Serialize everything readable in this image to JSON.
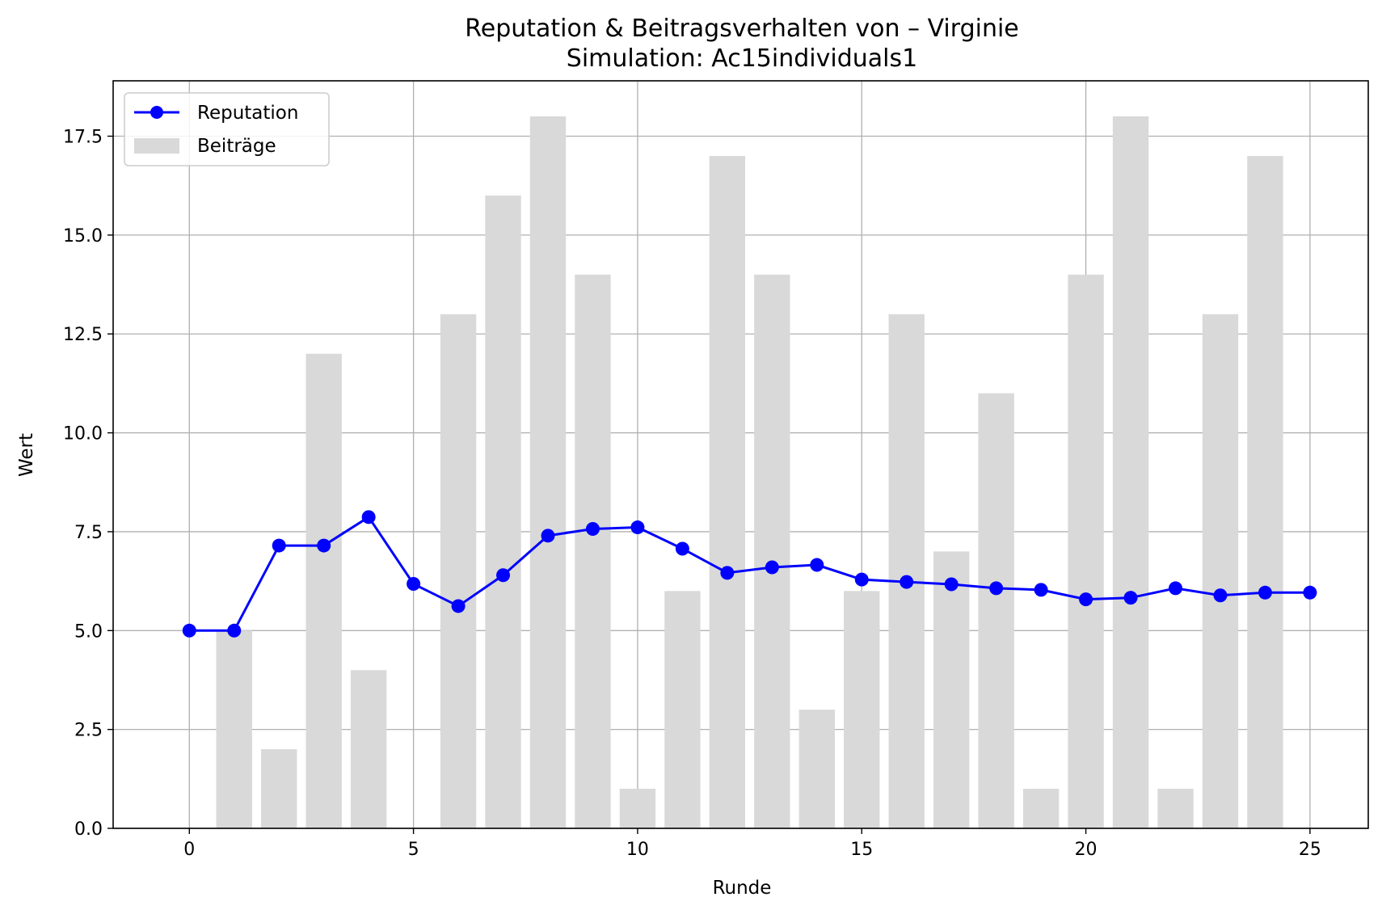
{
  "chart_data": {
    "type": "bar+line",
    "title": "Reputation & Beitragsverhalten von – Virginie",
    "subtitle": "Simulation: Ac15individuals1",
    "xlabel": "Runde",
    "ylabel": "Wert",
    "xlim": [
      -1.7,
      26.3
    ],
    "ylim": [
      0,
      18.9
    ],
    "xticks": [
      0,
      5,
      10,
      15,
      20,
      25
    ],
    "yticks": [
      0.0,
      2.5,
      5.0,
      7.5,
      10.0,
      12.5,
      15.0,
      17.5
    ],
    "grid": true,
    "legend_position": "top-left",
    "colors": {
      "line": "#0000ff",
      "bars": "#d9d9d9",
      "grid": "#b0b0b0"
    },
    "bars": {
      "name": "Beiträge",
      "x": [
        1,
        2,
        3,
        4,
        5,
        6,
        7,
        8,
        9,
        10,
        11,
        12,
        13,
        14,
        15,
        16,
        17,
        18,
        19,
        20,
        21,
        22,
        23,
        24,
        25
      ],
      "values": [
        5,
        2,
        12,
        4,
        0,
        13,
        16,
        18,
        14,
        1,
        6,
        17,
        14,
        3,
        6,
        13,
        7,
        11,
        1,
        14,
        18,
        1,
        13,
        17,
        0
      ]
    },
    "line": {
      "name": "Reputation",
      "x": [
        0,
        1,
        2,
        3,
        4,
        5,
        6,
        7,
        8,
        9,
        10,
        11,
        12,
        13,
        14,
        15,
        16,
        17,
        18,
        19,
        20,
        21,
        22,
        23,
        24,
        25
      ],
      "values": [
        5.0,
        5.0,
        7.15,
        7.15,
        7.87,
        6.18,
        5.62,
        6.4,
        7.4,
        7.57,
        7.61,
        7.07,
        6.46,
        6.6,
        6.66,
        6.29,
        6.23,
        6.17,
        6.07,
        6.03,
        5.79,
        5.83,
        6.07,
        5.89,
        5.96,
        5.96
      ]
    }
  }
}
